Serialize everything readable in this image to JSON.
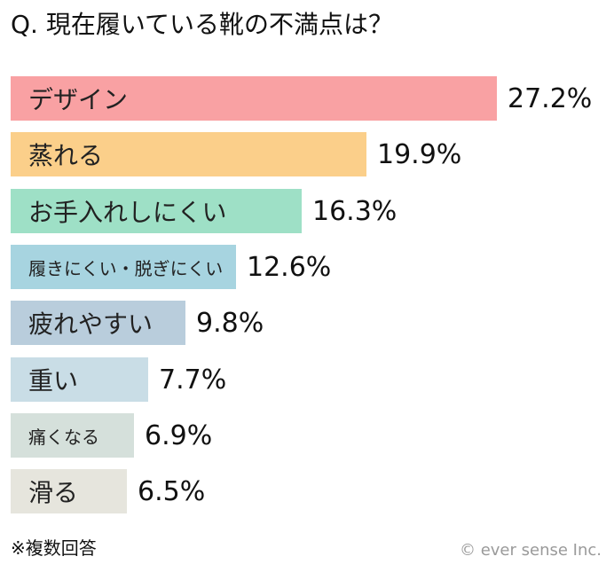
{
  "question": "Q. 現在履いている靴の不満点は？",
  "footnote": "※複数回答",
  "copyright": "© ever sense Inc.",
  "chart_data": {
    "type": "bar",
    "orientation": "horizontal",
    "title": "Q. 現在履いている靴の不満点は？",
    "unit": "%",
    "categories": [
      "デザイン",
      "蒸れる",
      "お手入れしにくい",
      "履きにくい・脱ぎにくい",
      "疲れやすい",
      "重い",
      "痛くなる",
      "滑る"
    ],
    "values": [
      27.2,
      19.9,
      16.3,
      12.6,
      9.8,
      7.7,
      6.9,
      6.5
    ],
    "value_labels": [
      "27.2%",
      "19.9%",
      "16.3%",
      "12.6%",
      "9.8%",
      "7.7%",
      "6.9%",
      "6.5%"
    ],
    "colors": [
      "#f9a1a3",
      "#fbcf8a",
      "#9ee0c6",
      "#a7d4e0",
      "#b9cddc",
      "#c9dde6",
      "#d5e0db",
      "#e6e5dd"
    ],
    "grid": false,
    "legend": "none"
  }
}
